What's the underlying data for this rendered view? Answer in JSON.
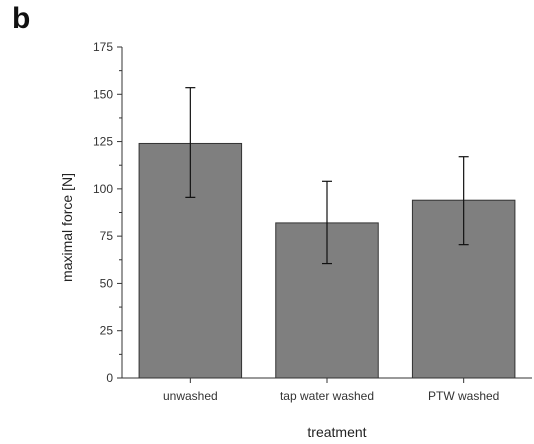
{
  "panel_letter": "b",
  "chart_data": {
    "type": "bar",
    "title": "",
    "xlabel": "treatment",
    "ylabel": "maximal force [N]",
    "categories": [
      "unwashed",
      "tap water washed",
      "PTW washed"
    ],
    "values": [
      124,
      82,
      94
    ],
    "error_low": [
      95.5,
      60.5,
      70.5
    ],
    "error_high": [
      153.5,
      104,
      117
    ],
    "ylim": [
      0,
      175
    ],
    "yticks": [
      0,
      25,
      50,
      75,
      100,
      125,
      150,
      175
    ],
    "grid": false,
    "legend": "none",
    "bar_color": "#7f7f7f"
  }
}
